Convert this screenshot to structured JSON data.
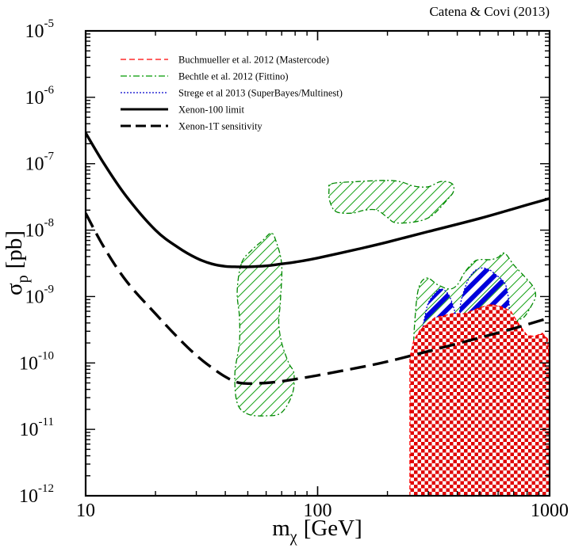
{
  "chart_data": {
    "type": "line",
    "credit": "Catena & Covi (2013)",
    "xscale": "log",
    "yscale": "log",
    "xlim": [
      10,
      1000
    ],
    "ylim": [
      1e-12,
      1e-05
    ],
    "xlabel": {
      "main": "m",
      "sub": "χ",
      "unit": "[GeV]"
    },
    "ylabel": {
      "main": "σ",
      "sub": "p",
      "unit": "[pb]"
    },
    "x_ticks": [
      {
        "value": 10,
        "label": "10"
      },
      {
        "value": 100,
        "label": "100"
      },
      {
        "value": 1000,
        "label": "1000"
      }
    ],
    "y_ticks": [
      {
        "value": 1e-12,
        "base": "10",
        "exp": "-12"
      },
      {
        "value": 1e-11,
        "base": "10",
        "exp": "-11"
      },
      {
        "value": 1e-10,
        "base": "10",
        "exp": "-10"
      },
      {
        "value": 1e-09,
        "base": "10",
        "exp": "-9"
      },
      {
        "value": 1e-08,
        "base": "10",
        "exp": "-8"
      },
      {
        "value": 1e-07,
        "base": "10",
        "exp": "-7"
      },
      {
        "value": 1e-06,
        "base": "10",
        "exp": "-6"
      },
      {
        "value": 1e-05,
        "base": "10",
        "exp": "-5"
      }
    ],
    "legend_position": "top-left",
    "legend": [
      {
        "label": "Buchmueller et al. 2012 (Mastercode)",
        "style": "red-dashed",
        "color": "#ff0000"
      },
      {
        "label": "Bechtle et al. 2012 (Fittino)",
        "style": "green-dashdot",
        "color": "#008800"
      },
      {
        "label": "Strege et al 2013 (SuperBayes/Multinest)",
        "style": "blue-dotted",
        "color": "#0000cc"
      },
      {
        "label": "Xenon-100 limit",
        "style": "black-solid",
        "color": "#000000"
      },
      {
        "label": "Xenon-1T sensitivity",
        "style": "black-dashed",
        "color": "#000000"
      }
    ],
    "series": [
      {
        "name": "Xenon-100 limit",
        "kind": "curve",
        "style": "solid",
        "color": "#000000",
        "points": [
          [
            10,
            2.9e-07
          ],
          [
            12,
            1e-07
          ],
          [
            15,
            3.2e-08
          ],
          [
            20,
            1e-08
          ],
          [
            25,
            5.5e-09
          ],
          [
            30,
            3.8e-09
          ],
          [
            35,
            3.1e-09
          ],
          [
            40,
            2.85e-09
          ],
          [
            45,
            2.8e-09
          ],
          [
            50,
            2.8e-09
          ],
          [
            60,
            2.9e-09
          ],
          [
            70,
            3.1e-09
          ],
          [
            80,
            3.3e-09
          ],
          [
            100,
            3.8e-09
          ],
          [
            150,
            5.2e-09
          ],
          [
            200,
            6.6e-09
          ],
          [
            300,
            9.5e-09
          ],
          [
            500,
            1.5e-08
          ],
          [
            700,
            2.1e-08
          ],
          [
            1000,
            3e-08
          ]
        ]
      },
      {
        "name": "Xenon-1T sensitivity",
        "kind": "curve",
        "style": "dashed",
        "color": "#000000",
        "points": [
          [
            10,
            1.8e-08
          ],
          [
            12,
            5.5e-09
          ],
          [
            15,
            1.7e-09
          ],
          [
            20,
            5.5e-10
          ],
          [
            25,
            2.4e-10
          ],
          [
            30,
            1.3e-10
          ],
          [
            35,
            8.5e-11
          ],
          [
            40,
            6.2e-11
          ],
          [
            45,
            5.1e-11
          ],
          [
            50,
            4.9e-11
          ],
          [
            60,
            5e-11
          ],
          [
            70,
            5.3e-11
          ],
          [
            80,
            5.7e-11
          ],
          [
            100,
            6.5e-11
          ],
          [
            150,
            8.5e-11
          ],
          [
            200,
            1.05e-10
          ],
          [
            300,
            1.5e-10
          ],
          [
            500,
            2.4e-10
          ],
          [
            700,
            3.3e-10
          ],
          [
            1000,
            4.8e-10
          ]
        ]
      },
      {
        "name": "Fittino region (low mass)",
        "kind": "region",
        "fill": "green-hatch",
        "outline": "#008800",
        "points": [
          [
            47,
            3.2e-09
          ],
          [
            52,
            5e-09
          ],
          [
            58,
            7e-09
          ],
          [
            63,
            9e-09
          ],
          [
            66,
            7e-09
          ],
          [
            70,
            3e-09
          ],
          [
            69,
            8e-10
          ],
          [
            68,
            4e-10
          ],
          [
            70,
            2e-10
          ],
          [
            75,
            1e-10
          ],
          [
            79,
            7e-11
          ],
          [
            78,
            3.5e-11
          ],
          [
            70,
            1.8e-11
          ],
          [
            60,
            1.6e-11
          ],
          [
            50,
            1.7e-11
          ],
          [
            45,
            2.5e-11
          ],
          [
            44,
            7e-11
          ],
          [
            46,
            2e-10
          ],
          [
            46,
            5e-10
          ],
          [
            45,
            1.2e-09
          ]
        ]
      },
      {
        "name": "Fittino region (upper band)",
        "kind": "region",
        "fill": "green-hatch",
        "outline": "#008800",
        "points": [
          [
            115,
            5e-08
          ],
          [
            150,
            5.4e-08
          ],
          [
            200,
            5.6e-08
          ],
          [
            230,
            5.3e-08
          ],
          [
            260,
            4.6e-08
          ],
          [
            300,
            4.5e-08
          ],
          [
            340,
            5.4e-08
          ],
          [
            380,
            5e-08
          ],
          [
            385,
            3.8e-08
          ],
          [
            360,
            2.8e-08
          ],
          [
            320,
            1.8e-08
          ],
          [
            290,
            1.45e-08
          ],
          [
            250,
            1.3e-08
          ],
          [
            215,
            1.3e-08
          ],
          [
            200,
            1.55e-08
          ],
          [
            180,
            2e-08
          ],
          [
            160,
            2e-08
          ],
          [
            140,
            1.8e-08
          ],
          [
            120,
            1.9e-08
          ],
          [
            113,
            2.7e-08
          ],
          [
            112,
            4e-08
          ]
        ]
      },
      {
        "name": "Fittino region (high mass)",
        "kind": "region",
        "fill": "green-hatch",
        "outline": "#008800",
        "points": [
          [
            255,
            4e-11
          ],
          [
            258,
            1.2e-10
          ],
          [
            262,
            4e-10
          ],
          [
            272,
            1.3e-09
          ],
          [
            295,
            1.9e-09
          ],
          [
            330,
            1.5e-09
          ],
          [
            370,
            1.3e-09
          ],
          [
            400,
            1.5e-09
          ],
          [
            430,
            2.3e-09
          ],
          [
            470,
            3.3e-09
          ],
          [
            500,
            3.6e-09
          ],
          [
            560,
            3.6e-09
          ],
          [
            600,
            3.9e-09
          ],
          [
            640,
            4.5e-09
          ],
          [
            700,
            3e-09
          ],
          [
            780,
            2e-09
          ],
          [
            850,
            1.4e-09
          ],
          [
            870,
            1e-09
          ],
          [
            830,
            7e-10
          ],
          [
            780,
            5e-10
          ],
          [
            720,
            4e-10
          ],
          [
            700,
            2e-10
          ],
          [
            680,
            1e-10
          ],
          [
            630,
            5e-11
          ],
          [
            560,
            1.5e-11
          ],
          [
            500,
            6e-12
          ],
          [
            450,
            4.5e-12
          ],
          [
            400,
            5e-12
          ],
          [
            350,
            7e-12
          ],
          [
            300,
            1.3e-11
          ],
          [
            270,
            1.8e-11
          ]
        ]
      },
      {
        "name": "SuperBayes region (left)",
        "kind": "region",
        "fill": "blue-hatch",
        "outline": "#0000cc",
        "points": [
          [
            285,
            3.5e-10
          ],
          [
            290,
            5e-10
          ],
          [
            300,
            8e-10
          ],
          [
            320,
            1.1e-09
          ],
          [
            340,
            1.3e-09
          ],
          [
            365,
            1.1e-09
          ],
          [
            385,
            7e-10
          ],
          [
            400,
            4e-10
          ],
          [
            400,
            2e-10
          ],
          [
            380,
            9e-11
          ],
          [
            355,
            6e-11
          ],
          [
            330,
            5e-11
          ],
          [
            305,
            7e-11
          ],
          [
            290,
            1.2e-10
          ],
          [
            285,
            2e-10
          ]
        ]
      },
      {
        "name": "SuperBayes region (right)",
        "kind": "region",
        "fill": "blue-hatch",
        "outline": "#0000cc",
        "points": [
          [
            410,
            6e-10
          ],
          [
            420,
            1e-09
          ],
          [
            450,
            1.9e-09
          ],
          [
            490,
            2.6e-09
          ],
          [
            540,
            2.6e-09
          ],
          [
            590,
            2.1e-09
          ],
          [
            640,
            1.6e-09
          ],
          [
            660,
            1.1e-09
          ],
          [
            670,
            7e-10
          ],
          [
            660,
            4e-10
          ],
          [
            620,
            3e-10
          ],
          [
            560,
            2.5e-10
          ],
          [
            500,
            2.4e-10
          ],
          [
            460,
            2.6e-10
          ],
          [
            430,
            3.4e-10
          ],
          [
            412,
            4.5e-10
          ]
        ]
      },
      {
        "name": "Mastercode region",
        "kind": "region",
        "fill": "red-checker",
        "outline": "#ff0000",
        "points": [
          [
            250,
            1e-12
          ],
          [
            250,
            1.2e-10
          ],
          [
            260,
            2.2e-10
          ],
          [
            280,
            3.3e-10
          ],
          [
            320,
            4.8e-10
          ],
          [
            380,
            5.5e-10
          ],
          [
            430,
            5.5e-10
          ],
          [
            500,
            6.8e-10
          ],
          [
            560,
            7.6e-10
          ],
          [
            620,
            7e-10
          ],
          [
            680,
            6e-10
          ],
          [
            720,
            4.3e-10
          ],
          [
            760,
            3.3e-10
          ],
          [
            800,
            2.6e-10
          ],
          [
            860,
            2.5e-10
          ],
          [
            930,
            2.8e-10
          ],
          [
            980,
            2.3e-10
          ],
          [
            1000,
            1e-10
          ],
          [
            1000,
            1e-12
          ]
        ]
      }
    ]
  }
}
